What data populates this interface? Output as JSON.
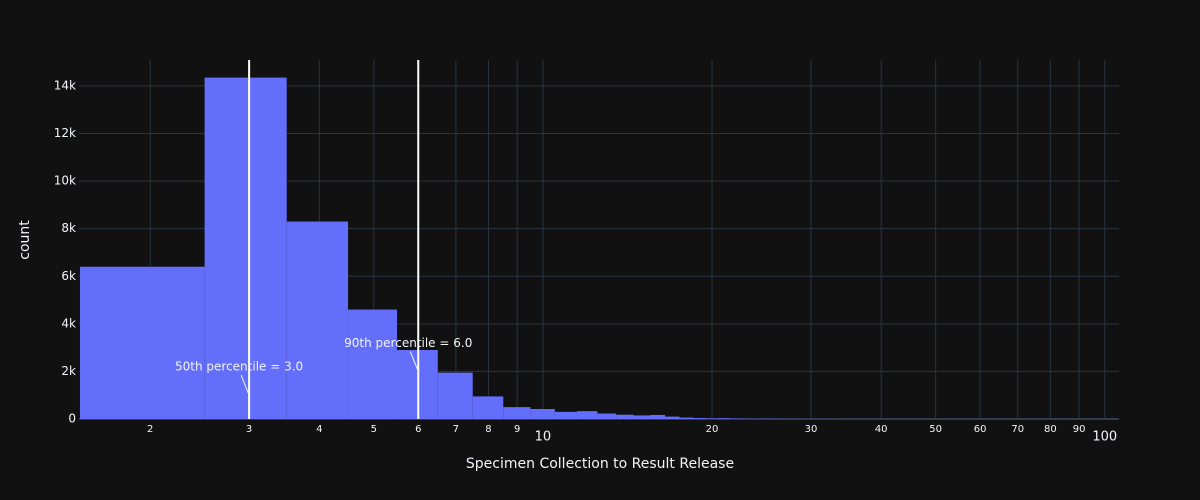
{
  "chart_data": {
    "type": "histogram",
    "xlabel": "Specimen Collection to Result Release",
    "ylabel": "count",
    "bins": [
      1.5,
      2.5,
      3.5,
      4.5,
      5.5,
      6.5,
      7.5,
      8.5,
      9.5,
      10.5,
      11.5,
      12.5,
      13.5,
      14.5,
      15.5,
      16.5,
      17.5,
      18.5,
      19.5,
      20.5,
      21.5,
      22.5,
      23.5,
      24.5,
      25.5,
      26.5,
      27.5,
      28.5,
      29.5,
      30.5,
      31.5,
      32.5,
      33.5,
      34.5,
      35.5,
      36.5,
      37.5,
      38.5,
      39.5,
      40.5
    ],
    "values": [
      6400,
      14350,
      8300,
      4600,
      2900,
      1950,
      950,
      500,
      420,
      300,
      330,
      230,
      180,
      150,
      170,
      100,
      60,
      40,
      30,
      35,
      25,
      20,
      15,
      20,
      12,
      10,
      8,
      6,
      5,
      4,
      3,
      3,
      2,
      2,
      2,
      1,
      1,
      1,
      1
    ],
    "color": "#636efa",
    "xscale": "log",
    "xlim": [
      1.494,
      106
    ],
    "xticks": [
      2,
      3,
      4,
      5,
      6,
      7,
      8,
      9,
      10,
      20,
      30,
      40,
      50,
      60,
      70,
      80,
      90,
      100
    ],
    "ylim": [
      0,
      15090
    ],
    "yticks": [
      0,
      {
        "value": 2000,
        "label": "2k"
      },
      {
        "value": 4000,
        "label": "4k"
      },
      {
        "value": 6000,
        "label": "6k"
      },
      {
        "value": 8000,
        "label": "8k"
      },
      {
        "value": 10000,
        "label": "10k"
      },
      {
        "value": 12000,
        "label": "12k"
      },
      {
        "value": 14000,
        "label": "14k"
      }
    ],
    "grid": true,
    "vlines": [
      3,
      6
    ],
    "annotations": [
      {
        "text": "50th percentile = 3.0",
        "x": 3,
        "y": 1000
      },
      {
        "text": "90th percentile = 6.0",
        "x": 6,
        "y": 2000
      }
    ]
  }
}
